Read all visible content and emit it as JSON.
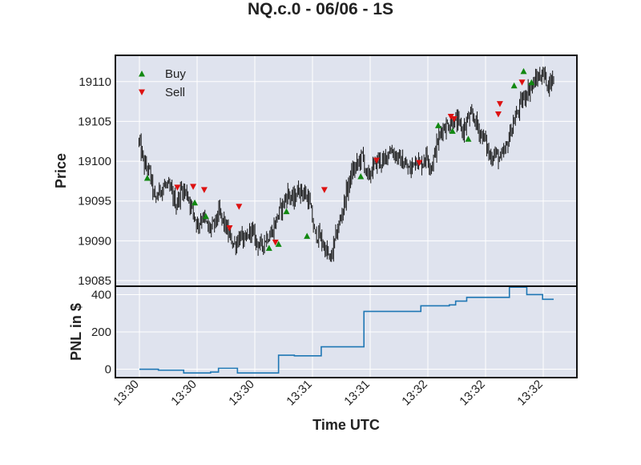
{
  "chart_data": {
    "type": "line",
    "title": "NQ.c.0 - 06/06 - 1S",
    "xlabel": "Time UTC",
    "x_tick_labels": [
      "13:30",
      "13:30",
      "13:30",
      "13:31",
      "13:31",
      "13:32",
      "13:32",
      "13:32"
    ],
    "grid": true,
    "background": "#dfe3ee",
    "panels": [
      {
        "name": "price",
        "type": "ohlc",
        "ylabel": "Price",
        "ylim": [
          19084.3,
          19113.3
        ],
        "yticks": [
          19085,
          19090,
          19095,
          19100,
          19105,
          19110
        ],
        "bar_color": "#111111",
        "close_series": [
          [
            0,
            19102.4
          ],
          [
            5,
            19099.5
          ],
          [
            10,
            19098.6
          ],
          [
            15,
            19095.0
          ],
          [
            20,
            19096.5
          ],
          [
            25,
            19097.0
          ],
          [
            30,
            19096.2
          ],
          [
            35,
            19094.5
          ],
          [
            40,
            19096.5
          ],
          [
            45,
            19096.0
          ],
          [
            50,
            19094.0
          ],
          [
            55,
            19092.0
          ],
          [
            60,
            19093.2
          ],
          [
            65,
            19091.5
          ],
          [
            70,
            19091.8
          ],
          [
            75,
            19093.5
          ],
          [
            80,
            19092.2
          ],
          [
            85,
            19090.5
          ],
          [
            90,
            19089.5
          ],
          [
            95,
            19090.6
          ],
          [
            100,
            19089.8
          ],
          [
            105,
            19091.5
          ],
          [
            110,
            19090.0
          ],
          [
            115,
            19089.3
          ],
          [
            120,
            19090.5
          ],
          [
            125,
            19091.0
          ],
          [
            130,
            19093.0
          ],
          [
            135,
            19094.5
          ],
          [
            140,
            19096.0
          ],
          [
            145,
            19095.0
          ],
          [
            150,
            19096.5
          ],
          [
            155,
            19096.0
          ],
          [
            160,
            19095.0
          ],
          [
            165,
            19091.0
          ],
          [
            170,
            19090.5
          ],
          [
            175,
            19089.0
          ],
          [
            180,
            19087.5
          ],
          [
            185,
            19090.5
          ],
          [
            190,
            19093.0
          ],
          [
            195,
            19096.0
          ],
          [
            200,
            19098.5
          ],
          [
            205,
            19099.5
          ],
          [
            210,
            19100.8
          ],
          [
            215,
            19097.8
          ],
          [
            220,
            19099.2
          ],
          [
            225,
            19100.2
          ],
          [
            230,
            19099.8
          ],
          [
            235,
            19101.5
          ],
          [
            240,
            19101.0
          ],
          [
            245,
            19100.2
          ],
          [
            250,
            19099.5
          ],
          [
            255,
            19098.8
          ],
          [
            260,
            19100.5
          ],
          [
            265,
            19099.5
          ],
          [
            270,
            19100.8
          ],
          [
            275,
            19099.3
          ],
          [
            280,
            19102.0
          ],
          [
            285,
            19104.2
          ],
          [
            290,
            19104.5
          ],
          [
            295,
            19105.0
          ],
          [
            300,
            19104.8
          ],
          [
            305,
            19103.8
          ],
          [
            310,
            19105.5
          ],
          [
            315,
            19105.5
          ],
          [
            320,
            19103.8
          ],
          [
            325,
            19102.8
          ],
          [
            330,
            19100.5
          ],
          [
            335,
            19101.0
          ],
          [
            340,
            19100.2
          ],
          [
            345,
            19101.5
          ],
          [
            350,
            19104.0
          ],
          [
            355,
            19105.8
          ],
          [
            360,
            19107.5
          ],
          [
            365,
            19108.8
          ],
          [
            370,
            19109.5
          ],
          [
            375,
            19110.5
          ],
          [
            380,
            19111.0
          ],
          [
            385,
            19109.6
          ],
          [
            390,
            19110.5
          ]
        ],
        "buy_markers": [
          [
            5,
            19097.9
          ],
          [
            35,
            19094.8
          ],
          [
            42,
            19093.1
          ],
          [
            82,
            19089.1
          ],
          [
            88,
            19089.6
          ],
          [
            93,
            19093.7
          ],
          [
            106,
            19090.6
          ],
          [
            140,
            19098.1
          ],
          [
            189,
            19104.5
          ],
          [
            198,
            19103.8
          ],
          [
            208,
            19102.8
          ],
          [
            237,
            19109.5
          ],
          [
            243,
            19111.3
          ],
          [
            248,
            19109.9
          ]
        ],
        "sell_markers": [
          [
            24,
            19096.7
          ],
          [
            34,
            19096.8
          ],
          [
            41,
            19096.4
          ],
          [
            57,
            19091.6
          ],
          [
            63,
            19094.3
          ],
          [
            86,
            19089.8
          ],
          [
            117,
            19096.4
          ],
          [
            150,
            19100.1
          ],
          [
            177,
            19099.8
          ],
          [
            197,
            19105.6
          ],
          [
            199,
            19105.3
          ],
          [
            227,
            19105.9
          ],
          [
            228,
            19107.2
          ],
          [
            242,
            19109.9
          ]
        ]
      },
      {
        "name": "pnl",
        "type": "step",
        "ylabel": "PNL in $",
        "ylim": [
          -45,
          445
        ],
        "yticks": [
          0,
          200,
          400
        ],
        "line_color": "#1f77b4",
        "values": [
          [
            0,
            0
          ],
          [
            6,
            0
          ],
          [
            12,
            -5
          ],
          [
            25,
            -5
          ],
          [
            28,
            -20
          ],
          [
            40,
            -20
          ],
          [
            45,
            -15
          ],
          [
            48,
            -15
          ],
          [
            50,
            5
          ],
          [
            60,
            5
          ],
          [
            62,
            -20
          ],
          [
            85,
            -20
          ],
          [
            88,
            75
          ],
          [
            98,
            72
          ],
          [
            108,
            72
          ],
          [
            115,
            120
          ],
          [
            130,
            120
          ],
          [
            138,
            120
          ],
          [
            142,
            310
          ],
          [
            175,
            310
          ],
          [
            178,
            340
          ],
          [
            196,
            345
          ],
          [
            200,
            365
          ],
          [
            207,
            385
          ],
          [
            220,
            385
          ],
          [
            227,
            385
          ],
          [
            232,
            385
          ],
          [
            234,
            440
          ],
          [
            242,
            440
          ],
          [
            245,
            400
          ],
          [
            252,
            400
          ],
          [
            255,
            375
          ],
          [
            262,
            375
          ]
        ]
      }
    ],
    "legend": {
      "position": "top-left",
      "entries": [
        {
          "label": "Buy",
          "color": "#118811",
          "marker": "triangle-up"
        },
        {
          "label": "Sell",
          "color": "#dd1111",
          "marker": "triangle-down"
        }
      ]
    }
  }
}
